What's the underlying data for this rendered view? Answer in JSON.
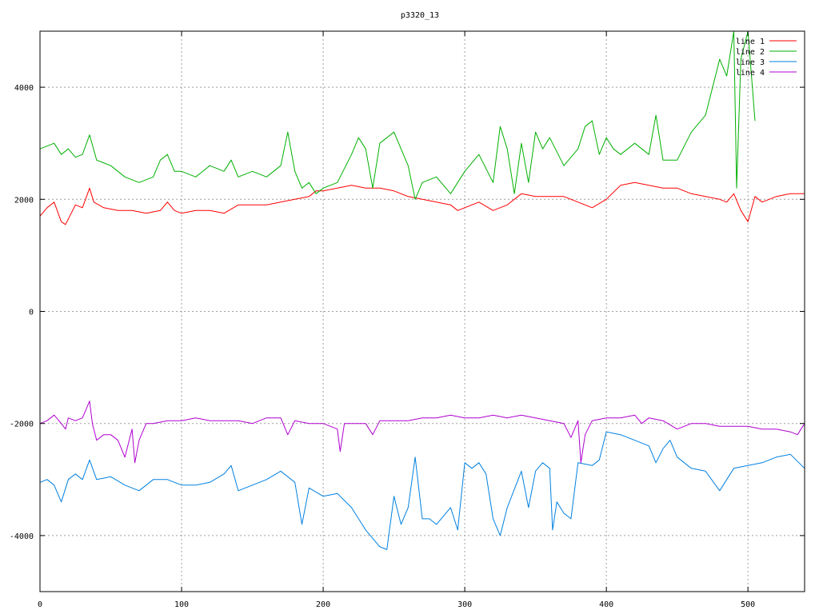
{
  "chart_data": {
    "type": "line",
    "title": "p3320_13",
    "xlabel": "",
    "ylabel": "",
    "xlim": [
      0,
      540
    ],
    "ylim": [
      -5000,
      5000
    ],
    "x_ticks": [
      0,
      100,
      200,
      300,
      400,
      500
    ],
    "y_ticks": [
      -4000,
      -2000,
      0,
      2000,
      4000
    ],
    "x_tick_labels": [
      "0",
      "100",
      "200",
      "300",
      "400",
      "500"
    ],
    "y_tick_labels": [
      "-4000",
      "-2000",
      "0",
      "2000",
      "4000"
    ],
    "grid": true,
    "legend_position": "top-right",
    "series": [
      {
        "name": "line 1",
        "color": "#ff0000",
        "x": [
          0,
          5,
          10,
          15,
          18,
          25,
          30,
          35,
          38,
          45,
          55,
          65,
          75,
          85,
          90,
          95,
          100,
          110,
          120,
          130,
          140,
          150,
          160,
          170,
          180,
          190,
          195,
          200,
          210,
          220,
          230,
          240,
          250,
          260,
          270,
          280,
          290,
          295,
          300,
          310,
          320,
          330,
          340,
          350,
          360,
          370,
          380,
          390,
          400,
          410,
          420,
          430,
          440,
          450,
          460,
          470,
          480,
          485,
          490,
          495,
          500,
          505,
          510,
          520,
          530,
          540
        ],
        "values": [
          1700,
          1850,
          1950,
          1600,
          1550,
          1900,
          1850,
          2200,
          1950,
          1850,
          1800,
          1800,
          1750,
          1800,
          1950,
          1800,
          1750,
          1800,
          1800,
          1750,
          1900,
          1900,
          1900,
          1950,
          2000,
          2050,
          2150,
          2150,
          2200,
          2250,
          2200,
          2200,
          2150,
          2050,
          2000,
          1950,
          1900,
          1800,
          1850,
          1950,
          1800,
          1900,
          2100,
          2050,
          2050,
          2050,
          1950,
          1850,
          2000,
          2250,
          2300,
          2250,
          2200,
          2200,
          2100,
          2050,
          2000,
          1950,
          2100,
          1800,
          1600,
          2050,
          1950,
          2050,
          2100,
          2100
        ]
      },
      {
        "name": "line 2",
        "color": "#00b000",
        "x": [
          0,
          5,
          10,
          15,
          20,
          25,
          30,
          35,
          40,
          50,
          60,
          70,
          80,
          85,
          90,
          95,
          100,
          110,
          120,
          130,
          135,
          140,
          150,
          160,
          170,
          175,
          180,
          185,
          190,
          195,
          200,
          210,
          220,
          225,
          230,
          235,
          240,
          250,
          255,
          260,
          265,
          270,
          280,
          290,
          300,
          310,
          320,
          325,
          330,
          335,
          340,
          345,
          350,
          355,
          360,
          370,
          380,
          385,
          390,
          395,
          400,
          405,
          410,
          420,
          430,
          435,
          440,
          450,
          460,
          470,
          480,
          485,
          490,
          492,
          495,
          500,
          505
        ],
        "values": [
          2900,
          2950,
          3000,
          2800,
          2900,
          2750,
          2800,
          3150,
          2700,
          2600,
          2400,
          2300,
          2400,
          2700,
          2800,
          2500,
          2500,
          2400,
          2600,
          2500,
          2700,
          2400,
          2500,
          2400,
          2600,
          3200,
          2500,
          2200,
          2300,
          2100,
          2200,
          2300,
          2800,
          3100,
          2900,
          2200,
          3000,
          3200,
          2900,
          2600,
          2000,
          2300,
          2400,
          2100,
          2500,
          2800,
          2300,
          3300,
          2900,
          2100,
          3000,
          2300,
          3200,
          2900,
          3100,
          2600,
          2900,
          3300,
          3400,
          2800,
          3100,
          2900,
          2800,
          3000,
          2800,
          3500,
          2700,
          2700,
          3200,
          3500,
          4500,
          4200,
          5000,
          2200,
          4500,
          5000,
          3400
        ]
      },
      {
        "name": "line 3",
        "color": "#0080e0",
        "x": [
          0,
          5,
          10,
          15,
          20,
          25,
          30,
          35,
          40,
          50,
          60,
          70,
          80,
          90,
          100,
          110,
          120,
          130,
          135,
          140,
          150,
          160,
          170,
          180,
          185,
          190,
          200,
          210,
          220,
          230,
          240,
          245,
          250,
          255,
          260,
          265,
          270,
          275,
          280,
          290,
          295,
          300,
          305,
          310,
          315,
          320,
          325,
          330,
          340,
          345,
          350,
          355,
          360,
          362,
          365,
          370,
          375,
          380,
          390,
          395,
          400,
          410,
          420,
          430,
          435,
          440,
          445,
          450,
          460,
          470,
          480,
          490,
          500,
          510,
          520,
          530,
          540
        ],
        "values": [
          -3050,
          -3000,
          -3100,
          -3400,
          -3000,
          -2900,
          -3000,
          -2650,
          -3000,
          -2950,
          -3100,
          -3200,
          -3000,
          -3000,
          -3100,
          -3100,
          -3050,
          -2900,
          -2750,
          -3200,
          -3100,
          -3000,
          -2850,
          -3050,
          -3800,
          -3150,
          -3300,
          -3250,
          -3500,
          -3900,
          -4200,
          -4250,
          -3300,
          -3800,
          -3500,
          -2600,
          -3700,
          -3700,
          -3800,
          -3500,
          -3900,
          -2700,
          -2800,
          -2700,
          -2900,
          -3700,
          -4000,
          -3500,
          -2850,
          -3500,
          -2850,
          -2700,
          -2800,
          -3900,
          -3400,
          -3600,
          -3700,
          -2700,
          -2750,
          -2650,
          -2150,
          -2200,
          -2300,
          -2400,
          -2700,
          -2450,
          -2300,
          -2600,
          -2800,
          -2850,
          -3200,
          -2800,
          -2750,
          -2700,
          -2600,
          -2550,
          -2800
        ]
      },
      {
        "name": "line 4",
        "color": "#b000d0",
        "x": [
          0,
          5,
          10,
          15,
          18,
          20,
          25,
          30,
          35,
          37,
          40,
          45,
          50,
          55,
          60,
          65,
          67,
          70,
          75,
          80,
          90,
          100,
          110,
          120,
          130,
          140,
          150,
          160,
          170,
          175,
          180,
          190,
          200,
          210,
          212,
          215,
          220,
          230,
          235,
          240,
          250,
          260,
          270,
          280,
          290,
          300,
          310,
          320,
          330,
          340,
          350,
          360,
          370,
          375,
          380,
          382,
          385,
          390,
          400,
          410,
          420,
          425,
          430,
          440,
          450,
          460,
          470,
          480,
          490,
          500,
          510,
          520,
          530,
          535,
          540
        ],
        "values": [
          -2000,
          -1950,
          -1850,
          -2000,
          -2100,
          -1900,
          -1950,
          -1900,
          -1600,
          -2000,
          -2300,
          -2200,
          -2200,
          -2300,
          -2600,
          -2100,
          -2700,
          -2300,
          -2000,
          -2000,
          -1950,
          -1950,
          -1900,
          -1950,
          -1950,
          -1950,
          -2000,
          -1900,
          -1900,
          -2200,
          -1950,
          -2000,
          -2000,
          -2100,
          -2500,
          -2000,
          -2000,
          -2000,
          -2200,
          -1950,
          -1950,
          -1950,
          -1900,
          -1900,
          -1850,
          -1900,
          -1900,
          -1850,
          -1900,
          -1850,
          -1900,
          -1950,
          -2000,
          -2250,
          -1950,
          -2700,
          -2200,
          -1950,
          -1900,
          -1900,
          -1850,
          -2000,
          -1900,
          -1950,
          -2100,
          -2000,
          -2000,
          -2050,
          -2050,
          -2050,
          -2100,
          -2100,
          -2150,
          -2200,
          -2000
        ]
      }
    ]
  }
}
